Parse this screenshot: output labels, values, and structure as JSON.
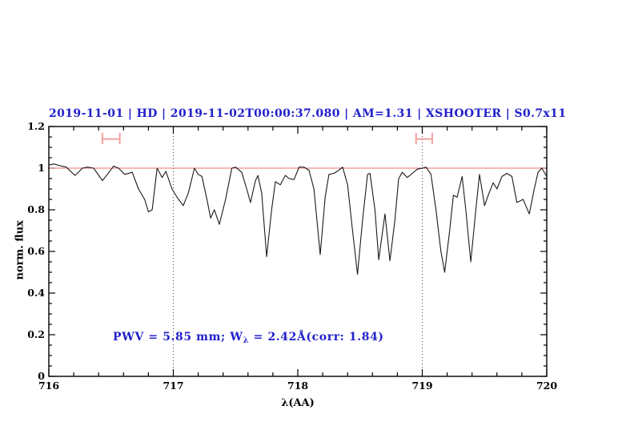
{
  "title": "2019-11-01 | HD | 2019-11-02T00:00:37.080 | AM=1.31 | XSHOOTER | S0.7x11",
  "annotation": {
    "prefix": "PWV = 5.85 mm; W",
    "subscript": "λ",
    "suffix": " = 2.42Å(corr: 1.84)"
  },
  "colors": {
    "title_blue": "#2121cc",
    "annotation_blue": "#2121cc",
    "continuum_red": "#ee7272",
    "marker_pink": "#f4a2a2",
    "spectrum_black": "#1a1a1a",
    "dotted_gray": "#444444",
    "frame_black": "#000000"
  },
  "chart_data": {
    "type": "line",
    "title": "2019-11-01 | HD | 2019-11-02T00:00:37.080 | AM=1.31 | XSHOOTER | S0.7x11",
    "xlabel": "λ(AA)",
    "ylabel": "norm. flux",
    "xlim": [
      716,
      720
    ],
    "ylim": [
      0,
      1.2
    ],
    "x_tick_labels": [
      "716",
      "717",
      "718",
      "719",
      "720"
    ],
    "x_tick_values": [
      716,
      717,
      718,
      719,
      720
    ],
    "x_minor_step": 0.2,
    "y_tick_labels": [
      "0",
      "0.2",
      "0.4",
      "0.6",
      "0.8",
      "1",
      "1.2"
    ],
    "y_tick_values": [
      0,
      0.2,
      0.4,
      0.6,
      0.8,
      1,
      1.2
    ],
    "y_minor_step": 0.05,
    "grid": "off",
    "legend": "none",
    "dotted_vlines": [
      717,
      719
    ],
    "continuum_hline": 1.0,
    "band_markers": [
      {
        "x1": 716.43,
        "x2": 716.57,
        "y": 1.14,
        "cap_y1": 1.115,
        "cap_y2": 1.17
      },
      {
        "x1": 718.95,
        "x2": 719.08,
        "y": 1.14,
        "cap_y1": 1.115,
        "cap_y2": 1.17
      }
    ],
    "series": [
      {
        "name": "telluric-spectrum",
        "x": [
          716.0,
          716.04,
          716.1,
          716.14,
          716.21,
          716.27,
          716.31,
          716.36,
          716.43,
          716.47,
          716.52,
          716.56,
          716.61,
          716.67,
          716.72,
          716.77,
          716.8,
          716.83,
          716.87,
          716.91,
          716.94,
          716.99,
          717.03,
          717.08,
          717.12,
          717.17,
          717.2,
          717.23,
          717.27,
          717.3,
          717.33,
          717.37,
          717.42,
          717.47,
          717.5,
          717.55,
          717.59,
          717.62,
          717.66,
          717.68,
          717.71,
          717.75,
          717.79,
          717.82,
          717.86,
          717.9,
          717.93,
          717.97,
          718.01,
          718.05,
          718.09,
          718.13,
          718.18,
          718.22,
          718.25,
          718.29,
          718.33,
          718.36,
          718.4,
          718.44,
          718.48,
          718.52,
          718.56,
          718.58,
          718.62,
          718.65,
          718.7,
          718.74,
          718.78,
          718.81,
          718.84,
          718.88,
          718.92,
          718.96,
          719.0,
          719.03,
          719.07,
          719.11,
          719.15,
          719.18,
          719.22,
          719.25,
          719.28,
          719.32,
          719.35,
          719.39,
          719.43,
          719.46,
          719.5,
          719.53,
          719.57,
          719.6,
          719.64,
          719.68,
          719.72,
          719.76,
          719.81,
          719.86,
          719.9,
          719.93,
          719.96,
          720.0
        ],
        "y": [
          1.015,
          1.02,
          1.01,
          1.005,
          0.965,
          1.0,
          1.005,
          1.0,
          0.94,
          0.97,
          1.01,
          1.0,
          0.97,
          0.98,
          0.9,
          0.85,
          0.79,
          0.8,
          1.0,
          0.955,
          0.985,
          0.9,
          0.86,
          0.82,
          0.88,
          1.0,
          0.97,
          0.96,
          0.85,
          0.76,
          0.8,
          0.73,
          0.85,
          1.0,
          1.005,
          0.98,
          0.9,
          0.835,
          0.94,
          0.965,
          0.88,
          0.575,
          0.8,
          0.935,
          0.92,
          0.965,
          0.95,
          0.945,
          1.005,
          1.005,
          0.99,
          0.9,
          0.585,
          0.86,
          0.97,
          0.975,
          0.99,
          1.005,
          0.92,
          0.7,
          0.49,
          0.75,
          0.97,
          0.975,
          0.8,
          0.56,
          0.78,
          0.555,
          0.75,
          0.95,
          0.98,
          0.955,
          0.975,
          0.995,
          1.0,
          1.005,
          0.97,
          0.8,
          0.6,
          0.5,
          0.7,
          0.87,
          0.86,
          0.96,
          0.8,
          0.55,
          0.8,
          0.97,
          0.82,
          0.87,
          0.93,
          0.9,
          0.96,
          0.975,
          0.96,
          0.835,
          0.85,
          0.78,
          0.9,
          0.98,
          1.0,
          0.96
        ]
      }
    ]
  }
}
